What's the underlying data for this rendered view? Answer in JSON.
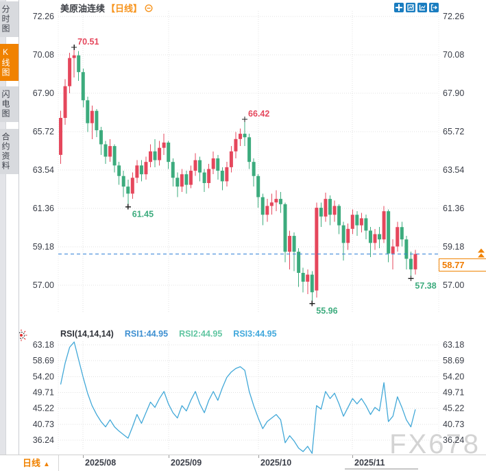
{
  "sidebar": {
    "tabs": [
      {
        "label": "分时图",
        "active": false
      },
      {
        "label": "K线图",
        "active": true
      },
      {
        "label": "闪电图",
        "active": false
      },
      {
        "label": "合约资料",
        "active": false
      }
    ]
  },
  "header": {
    "title": "美原油连续",
    "period": "【日线】"
  },
  "toolbar": {
    "icons": [
      "move-crosshair",
      "frame-chart",
      "axis-chart",
      "pop-out"
    ]
  },
  "rsi_header": {
    "name": "RSI(14,14,14)",
    "rsi1": "RSI1:44.95",
    "rsi2": "RSI2:44.95",
    "rsi3": "RSI3:44.95"
  },
  "price_box": {
    "value": "58.77"
  },
  "bottom_bar": {
    "period": "日线",
    "arrow": "▲"
  },
  "watermark": "FX678",
  "colors": {
    "up": "#e5475c",
    "down": "#3cab7d",
    "accent_orange": "#f08200",
    "dash_line": "#2e7fd6",
    "rsi_line": "#41a8d8",
    "grid": "#e0e0e0",
    "axis_text": "#383c46",
    "rsi1": "#3d8fd1",
    "rsi2": "#62c6a2",
    "rsi3": "#41a8dc",
    "marker": "#222222",
    "watermark": "#a9a9a9"
  },
  "chart_data": [
    {
      "type": "candlestick",
      "title": "美原油连续 日线",
      "ylim": [
        55.5,
        72.26
      ],
      "y_ticks": [
        "72.26",
        "70.08",
        "67.90",
        "65.72",
        "63.54",
        "61.36",
        "59.18",
        "57.00"
      ],
      "x_ticks": [
        "2025/08",
        "2025/09",
        "2025/10",
        "2025/11"
      ],
      "x_tick_indices": [
        5,
        24,
        44,
        65
      ],
      "current_price": 58.77,
      "annotations": [
        {
          "label": "70.51",
          "kind": "high",
          "index": 3,
          "value": 70.51
        },
        {
          "label": "66.42",
          "kind": "high",
          "index": 41,
          "value": 66.42
        },
        {
          "label": "61.45",
          "kind": "low",
          "index": 15,
          "value": 61.45
        },
        {
          "label": "55.96",
          "kind": "low",
          "index": 56,
          "value": 55.96
        },
        {
          "label": "57.38",
          "kind": "low",
          "index": 78,
          "value": 57.38
        }
      ],
      "candles": [
        [
          64.4,
          66.5,
          63.9,
          66.9
        ],
        [
          66.5,
          68.3,
          66.1,
          68.7
        ],
        [
          68.3,
          69.9,
          67.9,
          70.2
        ],
        [
          69.9,
          70.05,
          68.8,
          70.51
        ],
        [
          70.05,
          69.1,
          68.6,
          70.3
        ],
        [
          69.1,
          67.5,
          67.1,
          69.3
        ],
        [
          67.5,
          66.2,
          65.7,
          67.7
        ],
        [
          66.2,
          66.9,
          65.3,
          67.2
        ],
        [
          66.9,
          65.8,
          65.4,
          67.0
        ],
        [
          65.8,
          65.0,
          64.4,
          66.0
        ],
        [
          65.0,
          64.3,
          63.9,
          65.2
        ],
        [
          64.3,
          64.9,
          64.0,
          65.3
        ],
        [
          64.9,
          63.8,
          63.4,
          65.0
        ],
        [
          63.8,
          63.2,
          62.7,
          64.0
        ],
        [
          63.2,
          62.6,
          62.0,
          63.5
        ],
        [
          62.6,
          62.2,
          61.45,
          63.0
        ],
        [
          62.2,
          63.1,
          61.9,
          63.4
        ],
        [
          63.1,
          63.8,
          62.8,
          64.1
        ],
        [
          63.8,
          63.3,
          62.9,
          64.1
        ],
        [
          63.3,
          64.0,
          63.0,
          64.3
        ],
        [
          64.0,
          64.6,
          63.7,
          65.0
        ],
        [
          64.6,
          64.1,
          63.7,
          65.3
        ],
        [
          64.1,
          64.8,
          63.8,
          65.2
        ],
        [
          64.8,
          65.1,
          64.4,
          65.6
        ],
        [
          65.1,
          64.0,
          63.6,
          65.2
        ],
        [
          64.0,
          63.1,
          62.6,
          64.2
        ],
        [
          63.1,
          62.6,
          62.0,
          63.4
        ],
        [
          62.6,
          63.3,
          62.3,
          63.6
        ],
        [
          63.3,
          62.7,
          62.2,
          63.5
        ],
        [
          62.7,
          63.5,
          62.5,
          63.8
        ],
        [
          63.5,
          64.1,
          63.2,
          64.5
        ],
        [
          64.1,
          63.4,
          62.9,
          64.3
        ],
        [
          63.4,
          62.8,
          62.3,
          63.6
        ],
        [
          62.8,
          63.6,
          62.5,
          63.9
        ],
        [
          63.6,
          64.2,
          63.3,
          64.6
        ],
        [
          64.2,
          63.5,
          63.0,
          64.4
        ],
        [
          63.5,
          62.9,
          62.4,
          63.7
        ],
        [
          62.9,
          63.7,
          62.6,
          64.0
        ],
        [
          63.7,
          64.6,
          63.4,
          64.9
        ],
        [
          64.6,
          65.3,
          64.2,
          65.7
        ],
        [
          65.3,
          65.6,
          64.9,
          65.9
        ],
        [
          65.6,
          65.4,
          64.9,
          66.42
        ],
        [
          65.4,
          64.0,
          63.6,
          65.6
        ],
        [
          64.0,
          63.2,
          62.6,
          64.2
        ],
        [
          63.2,
          62.0,
          61.4,
          63.3
        ],
        [
          62.0,
          61.0,
          60.4,
          62.2
        ],
        [
          61.0,
          61.5,
          60.6,
          61.9
        ],
        [
          61.5,
          61.7,
          61.0,
          62.2
        ],
        [
          61.7,
          61.9,
          61.2,
          62.4
        ],
        [
          61.9,
          61.6,
          61.1,
          62.3
        ],
        [
          61.6,
          58.9,
          58.3,
          61.7
        ],
        [
          58.9,
          59.8,
          57.9,
          60.1
        ],
        [
          59.8,
          58.9,
          57.8,
          60.0
        ],
        [
          58.9,
          57.7,
          56.9,
          59.1
        ],
        [
          57.7,
          57.2,
          56.6,
          58.0
        ],
        [
          57.2,
          57.6,
          56.5,
          57.9
        ],
        [
          57.6,
          56.6,
          55.96,
          57.8
        ],
        [
          56.7,
          61.4,
          56.3,
          61.7
        ],
        [
          61.4,
          60.9,
          60.3,
          61.7
        ],
        [
          60.9,
          61.9,
          60.6,
          62.25
        ],
        [
          61.9,
          61.0,
          60.4,
          62.1
        ],
        [
          61.0,
          61.5,
          60.6,
          61.8
        ],
        [
          61.5,
          60.4,
          59.9,
          61.6
        ],
        [
          60.4,
          59.4,
          58.4,
          60.6
        ],
        [
          59.4,
          60.2,
          59.0,
          60.5
        ],
        [
          60.2,
          61.0,
          59.9,
          61.3
        ],
        [
          61.0,
          60.4,
          59.8,
          61.2
        ],
        [
          60.4,
          60.8,
          60.0,
          61.1
        ],
        [
          60.8,
          60.1,
          59.6,
          61.0
        ],
        [
          60.1,
          59.4,
          58.6,
          60.3
        ],
        [
          59.4,
          59.9,
          59.0,
          60.2
        ],
        [
          59.9,
          59.6,
          59.1,
          60.3
        ],
        [
          59.6,
          61.2,
          59.4,
          61.5
        ],
        [
          61.2,
          58.8,
          58.3,
          61.3
        ],
        [
          58.8,
          59.2,
          57.9,
          59.6
        ],
        [
          59.2,
          60.3,
          58.9,
          60.6
        ],
        [
          60.3,
          59.6,
          59.2,
          60.6
        ],
        [
          59.6,
          58.5,
          57.9,
          59.8
        ],
        [
          58.5,
          57.9,
          57.38,
          58.9
        ],
        [
          57.9,
          58.77,
          57.6,
          59.0
        ]
      ]
    },
    {
      "type": "line",
      "name": "RSI",
      "params": "(14,14,14)",
      "last": 44.95,
      "y_ticks": [
        "63.18",
        "58.69",
        "54.20",
        "49.71",
        "45.22",
        "40.73",
        "36.24"
      ],
      "values": [
        52,
        58,
        62.5,
        64,
        59,
        54,
        49.5,
        46,
        43.5,
        41.5,
        40,
        42,
        40,
        38.8,
        37.8,
        36.8,
        40,
        43.5,
        41,
        44,
        47,
        45.5,
        48,
        50,
        46.5,
        44,
        42.5,
        46,
        44.5,
        47.5,
        50,
        46.5,
        44,
        47.5,
        50,
        47.5,
        51,
        54,
        55.5,
        56.5,
        57,
        56,
        50,
        46,
        42.5,
        39.5,
        41.5,
        42.5,
        43.5,
        42,
        35.5,
        37.5,
        36,
        34,
        33,
        34.5,
        32.5,
        46,
        45,
        50,
        48,
        49.5,
        46.5,
        43,
        45.5,
        48,
        46.5,
        48,
        46,
        43.5,
        45.5,
        44.5,
        52.5,
        41.5,
        43,
        48.5,
        45.5,
        42,
        40,
        44.95
      ]
    }
  ]
}
